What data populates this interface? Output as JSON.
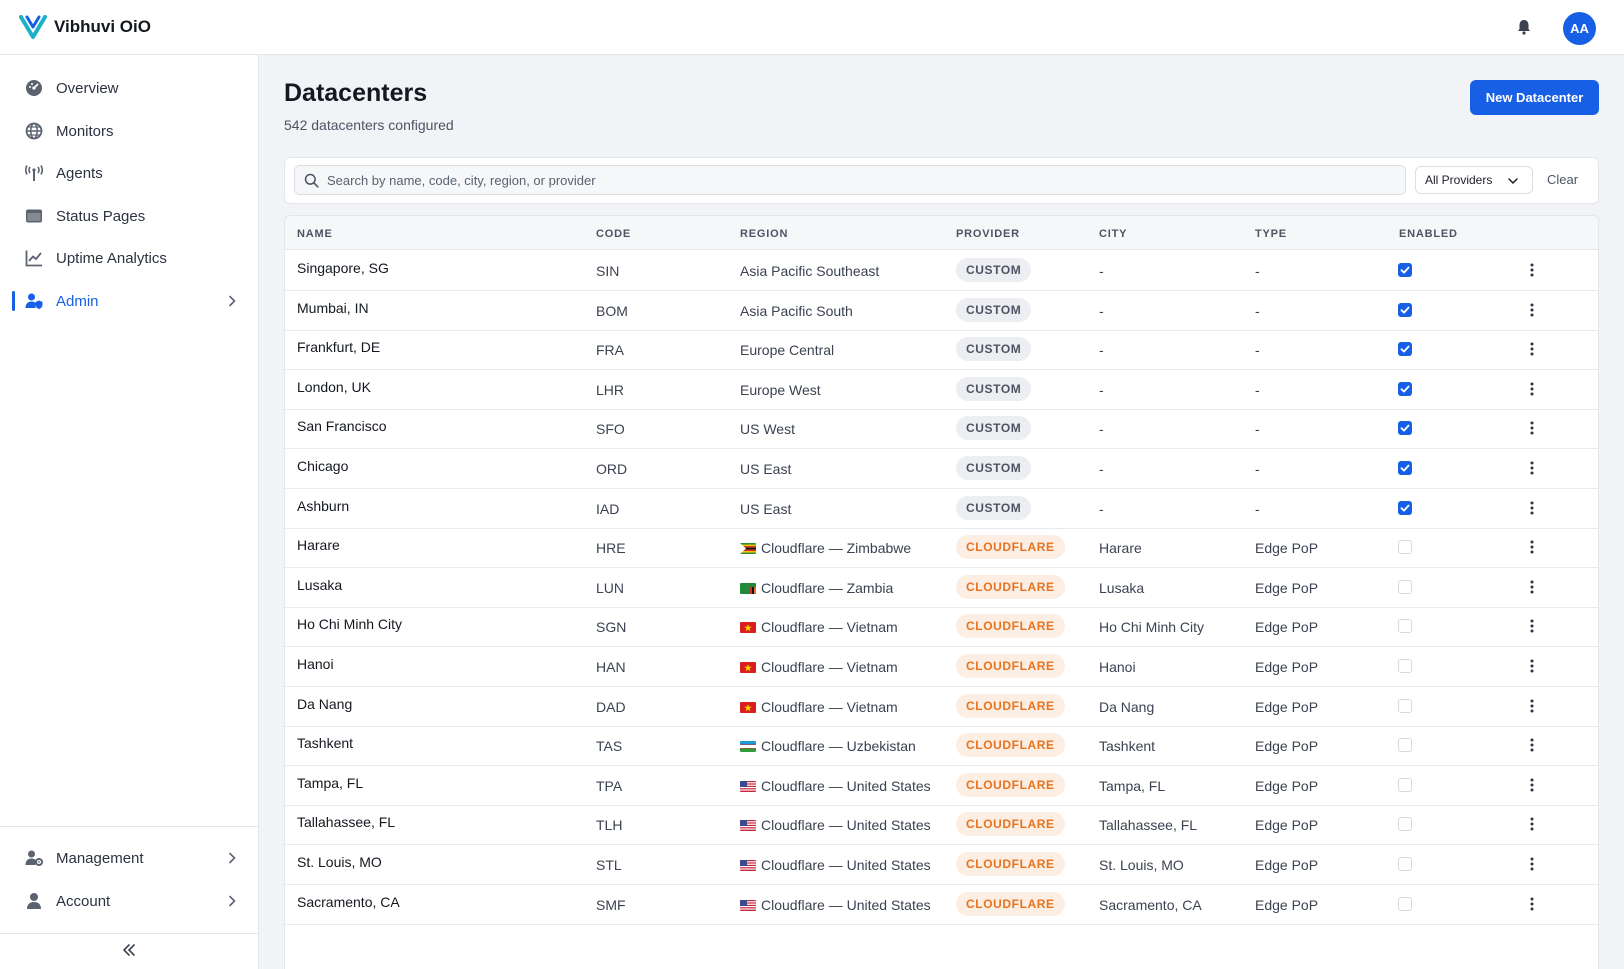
{
  "app": {
    "name": "Vibhuvi OiO",
    "user_initials": "AA"
  },
  "sidebar": {
    "items": [
      {
        "label": "Overview",
        "icon": "gauge-icon"
      },
      {
        "label": "Monitors",
        "icon": "globe-icon"
      },
      {
        "label": "Agents",
        "icon": "antenna-icon"
      },
      {
        "label": "Status Pages",
        "icon": "window-icon"
      },
      {
        "label": "Uptime Analytics",
        "icon": "line-chart-icon"
      },
      {
        "label": "Admin",
        "icon": "user-shield-icon",
        "active": true
      }
    ],
    "bottom_items": [
      {
        "label": "Management",
        "icon": "users-cog-icon"
      },
      {
        "label": "Account",
        "icon": "user-icon"
      }
    ]
  },
  "page": {
    "title": "Datacenters",
    "subtitle": "542 datacenters configured",
    "new_button": "New Datacenter"
  },
  "filters": {
    "search_placeholder": "Search by name, code, city, region, or provider",
    "search_value": "",
    "provider_select": "All Providers",
    "clear": "Clear"
  },
  "table": {
    "columns": [
      "NAME",
      "CODE",
      "REGION",
      "PROVIDER",
      "CITY",
      "TYPE",
      "ENABLED"
    ],
    "rows": [
      {
        "name": "Singapore, SG",
        "code": "SIN",
        "region": "Asia Pacific Southeast",
        "flag": "",
        "provider": "CUSTOM",
        "city": "-",
        "type": "-",
        "enabled": true
      },
      {
        "name": "Mumbai, IN",
        "code": "BOM",
        "region": "Asia Pacific South",
        "flag": "",
        "provider": "CUSTOM",
        "city": "-",
        "type": "-",
        "enabled": true
      },
      {
        "name": "Frankfurt, DE",
        "code": "FRA",
        "region": "Europe Central",
        "flag": "",
        "provider": "CUSTOM",
        "city": "-",
        "type": "-",
        "enabled": true
      },
      {
        "name": "London, UK",
        "code": "LHR",
        "region": "Europe West",
        "flag": "",
        "provider": "CUSTOM",
        "city": "-",
        "type": "-",
        "enabled": true
      },
      {
        "name": "San Francisco",
        "code": "SFO",
        "region": "US West",
        "flag": "",
        "provider": "CUSTOM",
        "city": "-",
        "type": "-",
        "enabled": true
      },
      {
        "name": "Chicago",
        "code": "ORD",
        "region": "US East",
        "flag": "",
        "provider": "CUSTOM",
        "city": "-",
        "type": "-",
        "enabled": true
      },
      {
        "name": "Ashburn",
        "code": "IAD",
        "region": "US East",
        "flag": "",
        "provider": "CUSTOM",
        "city": "-",
        "type": "-",
        "enabled": true
      },
      {
        "name": "Harare",
        "code": "HRE",
        "region": "Cloudflare — Zimbabwe",
        "flag": "zimbabwe",
        "provider": "CLOUDFLARE",
        "city": "Harare",
        "type": "Edge PoP",
        "enabled": false
      },
      {
        "name": "Lusaka",
        "code": "LUN",
        "region": "Cloudflare — Zambia",
        "flag": "zambia",
        "provider": "CLOUDFLARE",
        "city": "Lusaka",
        "type": "Edge PoP",
        "enabled": false
      },
      {
        "name": "Ho Chi Minh City",
        "code": "SGN",
        "region": "Cloudflare — Vietnam",
        "flag": "vietnam",
        "provider": "CLOUDFLARE",
        "city": "Ho Chi Minh City",
        "type": "Edge PoP",
        "enabled": false
      },
      {
        "name": "Hanoi",
        "code": "HAN",
        "region": "Cloudflare — Vietnam",
        "flag": "vietnam",
        "provider": "CLOUDFLARE",
        "city": "Hanoi",
        "type": "Edge PoP",
        "enabled": false
      },
      {
        "name": "Da Nang",
        "code": "DAD",
        "region": "Cloudflare — Vietnam",
        "flag": "vietnam",
        "provider": "CLOUDFLARE",
        "city": "Da Nang",
        "type": "Edge PoP",
        "enabled": false
      },
      {
        "name": "Tashkent",
        "code": "TAS",
        "region": "Cloudflare — Uzbekistan",
        "flag": "uzbekistan",
        "provider": "CLOUDFLARE",
        "city": "Tashkent",
        "type": "Edge PoP",
        "enabled": false
      },
      {
        "name": "Tampa, FL",
        "code": "TPA",
        "region": "Cloudflare — United States",
        "flag": "usa",
        "provider": "CLOUDFLARE",
        "city": "Tampa, FL",
        "type": "Edge PoP",
        "enabled": false
      },
      {
        "name": "Tallahassee, FL",
        "code": "TLH",
        "region": "Cloudflare — United States",
        "flag": "usa",
        "provider": "CLOUDFLARE",
        "city": "Tallahassee, FL",
        "type": "Edge PoP",
        "enabled": false
      },
      {
        "name": "St. Louis, MO",
        "code": "STL",
        "region": "Cloudflare — United States",
        "flag": "usa",
        "provider": "CLOUDFLARE",
        "city": "St. Louis, MO",
        "type": "Edge PoP",
        "enabled": false
      },
      {
        "name": "Sacramento, CA",
        "code": "SMF",
        "region": "Cloudflare — United States",
        "flag": "usa",
        "provider": "CLOUDFLARE",
        "city": "Sacramento, CA",
        "type": "Edge PoP",
        "enabled": false
      }
    ]
  },
  "colors": {
    "accent": "#1760e6",
    "cloudflare": "#e8731f",
    "custom_badge": "#eceef2"
  }
}
